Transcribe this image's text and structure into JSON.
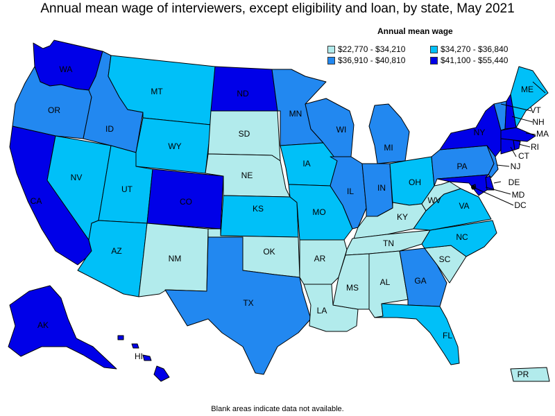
{
  "title": "Annual mean wage of interviewers, except eligibility and loan, by state, May 2021",
  "legend": {
    "title": "Annual mean wage",
    "items": [
      {
        "label": "$22,770 - $34,210",
        "color": "#b2ebec"
      },
      {
        "label": "$34,270 - $36,840",
        "color": "#00c0f8"
      },
      {
        "label": "$36,910 - $40,810",
        "color": "#2288f0"
      },
      {
        "label": "$41,100 - $55,440",
        "color": "#0000e8"
      }
    ]
  },
  "footer": "Blank areas indicate data not available.",
  "states": {
    "WA": "$41,100 - $55,440",
    "OR": "$36,910 - $40,810",
    "CA": "$41,100 - $55,440",
    "NV": "$34,270 - $36,840",
    "ID": "$36,910 - $40,810",
    "MT": "$34,270 - $36,840",
    "WY": "$34,270 - $36,840",
    "UT": "$34,270 - $36,840",
    "AZ": "$34,270 - $36,840",
    "CO": "$41,100 - $55,440",
    "NM": "$22,770 - $34,210",
    "ND": "$41,100 - $55,440",
    "SD": "$22,770 - $34,210",
    "NE": "$22,770 - $34,210",
    "KS": "$34,270 - $36,840",
    "OK": "$22,770 - $34,210",
    "TX": "$36,910 - $40,810",
    "MN": "$36,910 - $40,810",
    "IA": "$34,270 - $36,840",
    "MO": "$34,270 - $36,840",
    "AR": "$22,770 - $34,210",
    "LA": "$22,770 - $34,210",
    "WI": "$36,910 - $40,810",
    "IL": "$36,910 - $40,810",
    "MI": "$36,910 - $40,810",
    "IN": "$36,910 - $40,810",
    "OH": "$34,270 - $36,840",
    "KY": "$22,770 - $34,210",
    "TN": "$22,770 - $34,210",
    "MS": "$22,770 - $34,210",
    "AL": "$22,770 - $34,210",
    "GA": "$36,910 - $40,810",
    "FL": "$34,270 - $36,840",
    "SC": "$22,770 - $34,210",
    "NC": "$34,270 - $36,840",
    "VA": "$34,270 - $36,840",
    "WV": "$22,770 - $34,210",
    "PA": "$36,910 - $40,810",
    "NY": "$41,100 - $55,440",
    "VT": "$36,910 - $40,810",
    "NH": "$41,100 - $55,440",
    "ME": "$34,270 - $36,840",
    "MA": "$41,100 - $55,440",
    "RI": "$41,100 - $55,440",
    "CT": "$41,100 - $55,440",
    "NJ": "$36,910 - $40,810",
    "DE": "$41,100 - $55,440",
    "MD": "$41,100 - $55,440",
    "DC": "$41,100 - $55,440",
    "AK": "$41,100 - $55,440",
    "HI": "$41,100 - $55,440",
    "PR": "$22,770 - $34,210"
  }
}
